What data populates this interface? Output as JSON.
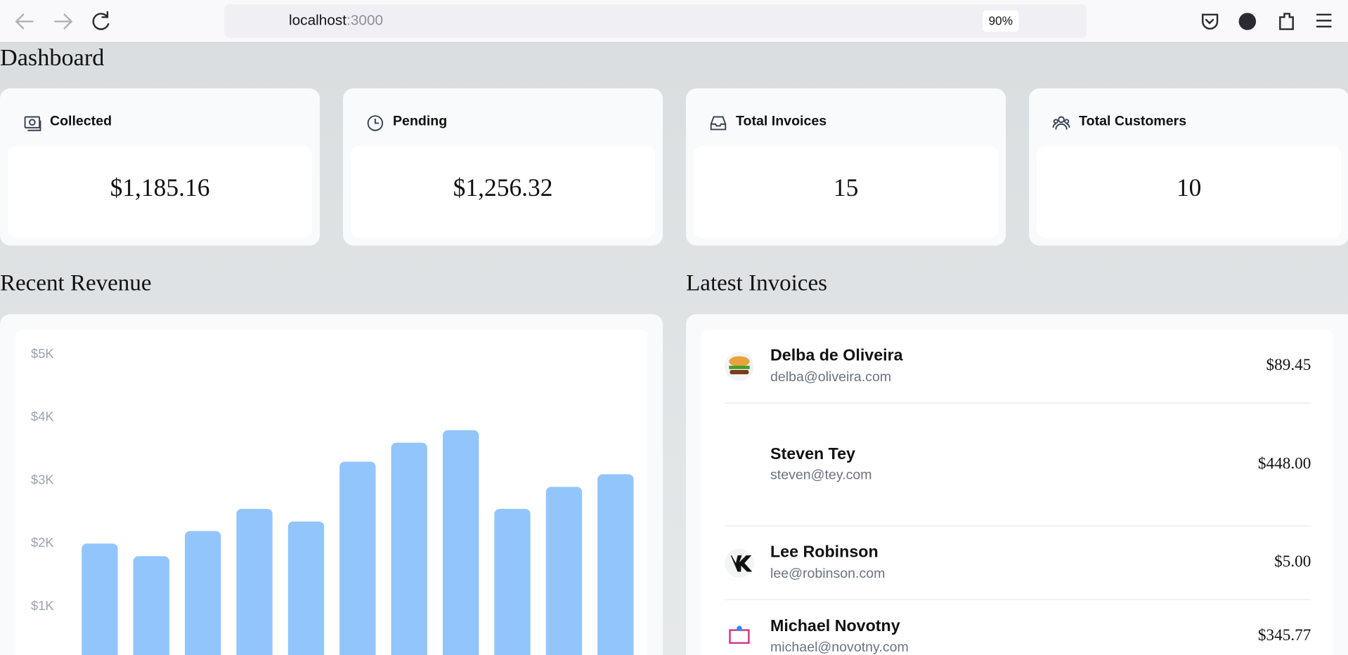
{
  "browser": {
    "url_host": "localhost",
    "url_port": ":3000",
    "zoom": "90%"
  },
  "heading": "Dashboard",
  "cards": [
    {
      "title": "Collected",
      "value": "$1,185.16"
    },
    {
      "title": "Pending",
      "value": "$1,256.32"
    },
    {
      "title": "Total Invoices",
      "value": "15"
    },
    {
      "title": "Total Customers",
      "value": "10"
    }
  ],
  "chart_data": {
    "type": "bar",
    "title": "Recent Revenue",
    "categories": [
      null,
      null,
      null,
      null,
      null,
      null,
      null,
      null,
      null,
      null,
      null
    ],
    "values": [
      2000,
      1800,
      2200,
      2550,
      2350,
      3300,
      3600,
      3800,
      2550,
      2900,
      3100
    ],
    "color": "#93c5fd",
    "ylim": [
      0,
      5000
    ],
    "yticks": [
      {
        "value": 1000,
        "label": "$1K"
      },
      {
        "value": 2000,
        "label": "$2K"
      },
      {
        "value": 3000,
        "label": "$3K"
      },
      {
        "value": 4000,
        "label": "$4K"
      },
      {
        "value": 5000,
        "label": "$5K"
      }
    ],
    "grid": false
  },
  "invoices": {
    "title": "Latest Invoices",
    "rows": [
      {
        "name": "Delba de Oliveira",
        "email": "delba@oliveira.com",
        "amount": "$89.45"
      },
      {
        "name": "Steven Tey",
        "email": "steven@tey.com",
        "amount": "$448.00"
      },
      {
        "name": "Lee Robinson",
        "email": "lee@robinson.com",
        "amount": "$5.00"
      },
      {
        "name": "Michael Novotny",
        "email": "michael@novotny.com",
        "amount": "$345.77"
      }
    ]
  }
}
